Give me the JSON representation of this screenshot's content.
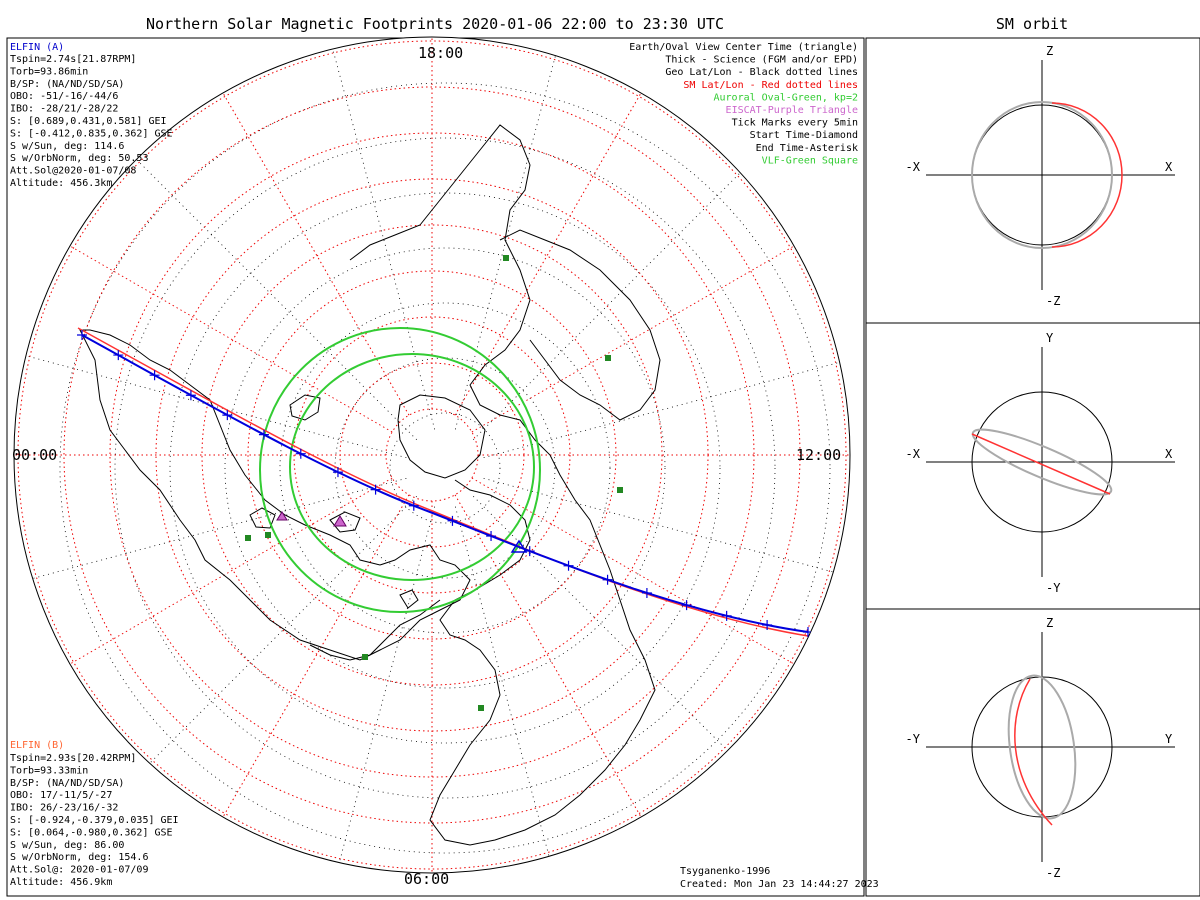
{
  "title": "Northern Solar Magnetic Footprints 2020-01-06 22:00 to 23:30 UTC",
  "right_title": "SM orbit",
  "mlt_labels": {
    "top": "18:00",
    "left": "00:00",
    "right": "12:00",
    "bottom": "06:00"
  },
  "elfin_a": {
    "title": "ELFIN (A)",
    "color": "#0000cc",
    "lines": [
      "Tspin=2.74s[21.87RPM]",
      "Torb=93.86min",
      "B/SP: (NA/ND/SD/SA)",
      "OBO: -51/-16/-44/6",
      "IBO: -28/21/-28/22",
      "S: [0.689,0.431,0.581] GEI",
      "S: [-0.412,0.835,0.362] GSE",
      "S w/Sun, deg: 114.6",
      "S w/OrbNorm, deg: 50.53",
      "Att.Sol@2020-01-07/08",
      "Altitude: 456.3km"
    ]
  },
  "elfin_b": {
    "title": "ELFIN (B)",
    "color": "#ff6633",
    "lines": [
      "Tspin=2.93s[20.42RPM]",
      "Torb=93.33min",
      "B/SP: (NA/ND/SD/SA)",
      "OBO: 17/-11/5/-27",
      "IBO: 26/-23/16/-32",
      "S: [-0.924,-0.379,0.035] GEI",
      "S: [0.064,-0.980,0.362] GSE",
      "S w/Sun, deg: 86.00",
      "S w/OrbNorm, deg: 154.6",
      "Att.Sol@: 2020-01-07/09",
      "Altitude: 456.9km"
    ]
  },
  "legend": [
    {
      "text": "Earth/Oval View Center Time (triangle)",
      "color": "#000000"
    },
    {
      "text": "Thick - Science (FGM and/or EPD)",
      "color": "#000000"
    },
    {
      "text": "Geo Lat/Lon - Black dotted lines",
      "color": "#000000"
    },
    {
      "text": "SM Lat/Lon - Red dotted lines",
      "color": "#ee0000"
    },
    {
      "text": "Auroral Oval-Green, kp=2",
      "color": "#33cc33"
    },
    {
      "text": "EISCAT-Purple Triangle",
      "color": "#cc66cc"
    },
    {
      "text": "Tick Marks every 5min",
      "color": "#000000"
    },
    {
      "text": "Start Time-Diamond",
      "color": "#000000"
    },
    {
      "text": "End Time-Asterisk",
      "color": "#000000"
    },
    {
      "text": "VLF-Green Square",
      "color": "#33cc33"
    }
  ],
  "footer": {
    "model": "Tsyganenko-1996",
    "created": "Created: Mon Jan 23 14:44:27 2023"
  },
  "orbit_panels": [
    {
      "top": "Z",
      "bottom": "-Z",
      "left": "-X",
      "right": "X"
    },
    {
      "top": "Y",
      "bottom": "-Y",
      "left": "-X",
      "right": "X"
    },
    {
      "top": "Z",
      "bottom": "-Z",
      "left": "-Y",
      "right": "Y"
    }
  ],
  "colors": {
    "elfin_a_track": "#0000dd",
    "elfin_b_track": "#ff3333",
    "auroral_oval": "#33cc33",
    "sm_grid": "#ee0000",
    "geo_grid": "#000000",
    "eiscat": "#cc66cc",
    "vlf": "#228822",
    "orbit_gray": "#aaaaaa"
  }
}
